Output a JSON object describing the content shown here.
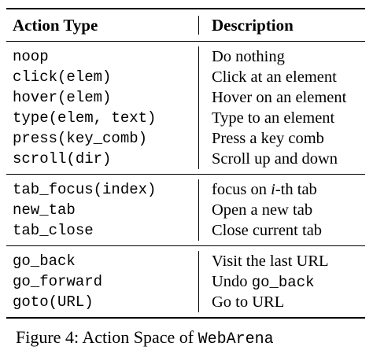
{
  "table": {
    "header": {
      "left": "Action Type",
      "right": "Description"
    },
    "groups": [
      {
        "rows": [
          {
            "action": "noop",
            "description": "Do nothing"
          },
          {
            "action": "click(elem)",
            "description": "Click at an element"
          },
          {
            "action": "hover(elem)",
            "description": "Hover on an element"
          },
          {
            "action": "type(elem, text)",
            "description": "Type to an element"
          },
          {
            "action": "press(key_comb)",
            "description": "Press a key comb"
          },
          {
            "action": "scroll(dir)",
            "description": "Scroll up and down"
          }
        ]
      },
      {
        "rows": [
          {
            "action": "tab_focus(index)",
            "description_pre": "focus on ",
            "description_italic": "i",
            "description_post": "-th tab"
          },
          {
            "action": "new_tab",
            "description": "Open a new tab"
          },
          {
            "action": "tab_close",
            "description": "Close current tab"
          }
        ]
      },
      {
        "rows": [
          {
            "action": "go_back",
            "description": "Visit the last URL"
          },
          {
            "action": "go_forward",
            "description_pre": "Undo ",
            "description_code": "go_back"
          },
          {
            "action": "goto(URL)",
            "description": "Go to URL"
          }
        ]
      }
    ]
  },
  "caption": {
    "text": "Figure 4: Action Space of ",
    "code": "WebArena"
  }
}
